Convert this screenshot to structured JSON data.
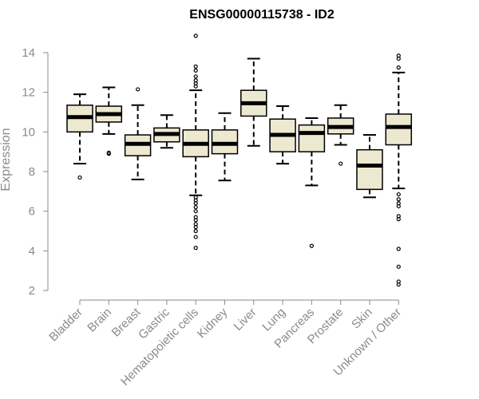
{
  "chart_data": {
    "type": "boxplot",
    "title": "ENSG00000115738 - ID2",
    "xlabel": "",
    "ylabel": "Expression",
    "ylim": [
      2,
      14
    ],
    "yticks": [
      2,
      4,
      6,
      8,
      10,
      12,
      14
    ],
    "grid": false,
    "box_color": "#ede8d0",
    "categories": [
      "Bladder",
      "Brain",
      "Breast",
      "Gastric",
      "Hematopoietic cells",
      "Kidney",
      "Liver",
      "Lung",
      "Pancreas",
      "Prostate",
      "Skin",
      "Unknown / Other"
    ],
    "boxes": [
      {
        "name": "Bladder",
        "whisker_low": 8.4,
        "q1": 10.0,
        "median": 10.75,
        "q3": 11.35,
        "whisker_high": 11.9,
        "outliers": [
          7.7
        ]
      },
      {
        "name": "Brain",
        "whisker_low": 9.9,
        "q1": 10.5,
        "median": 10.9,
        "q3": 11.3,
        "whisker_high": 12.25,
        "outliers": [
          8.9,
          8.95
        ]
      },
      {
        "name": "Breast",
        "whisker_low": 7.6,
        "q1": 8.8,
        "median": 9.4,
        "q3": 9.85,
        "whisker_high": 11.35,
        "outliers": [
          12.15
        ]
      },
      {
        "name": "Gastric",
        "whisker_low": 9.2,
        "q1": 9.5,
        "median": 9.9,
        "q3": 10.2,
        "whisker_high": 10.85,
        "outliers": []
      },
      {
        "name": "Hematopoietic cells",
        "whisker_low": 6.8,
        "q1": 8.75,
        "median": 9.4,
        "q3": 10.1,
        "whisker_high": 12.1,
        "outliers": [
          14.85,
          13.3,
          13.1,
          12.8,
          12.6,
          12.45,
          12.3,
          6.7,
          6.55,
          6.4,
          6.2,
          6.0,
          5.7,
          5.55,
          5.35,
          5.2,
          5.0,
          4.7,
          4.15
        ]
      },
      {
        "name": "Kidney",
        "whisker_low": 7.55,
        "q1": 8.9,
        "median": 9.4,
        "q3": 10.1,
        "whisker_high": 10.95,
        "outliers": []
      },
      {
        "name": "Liver",
        "whisker_low": 9.3,
        "q1": 10.8,
        "median": 11.45,
        "q3": 12.1,
        "whisker_high": 13.7,
        "outliers": []
      },
      {
        "name": "Lung",
        "whisker_low": 8.4,
        "q1": 9.0,
        "median": 9.85,
        "q3": 10.65,
        "whisker_high": 11.3,
        "outliers": []
      },
      {
        "name": "Pancreas",
        "whisker_low": 7.3,
        "q1": 9.0,
        "median": 9.95,
        "q3": 10.35,
        "whisker_high": 10.7,
        "outliers": [
          4.25
        ]
      },
      {
        "name": "Prostate",
        "whisker_low": 9.35,
        "q1": 9.9,
        "median": 10.25,
        "q3": 10.7,
        "whisker_high": 11.35,
        "outliers": [
          8.4
        ]
      },
      {
        "name": "Skin",
        "whisker_low": 6.7,
        "q1": 7.1,
        "median": 8.3,
        "q3": 9.1,
        "whisker_high": 9.85,
        "outliers": []
      },
      {
        "name": "Unknown / Other",
        "whisker_low": 7.15,
        "q1": 9.35,
        "median": 10.25,
        "q3": 10.9,
        "whisker_high": 13.0,
        "outliers": [
          13.85,
          13.7,
          13.25,
          6.85,
          6.6,
          6.4,
          6.25,
          5.75,
          5.6,
          4.1,
          3.2,
          2.45,
          2.3
        ]
      }
    ]
  }
}
